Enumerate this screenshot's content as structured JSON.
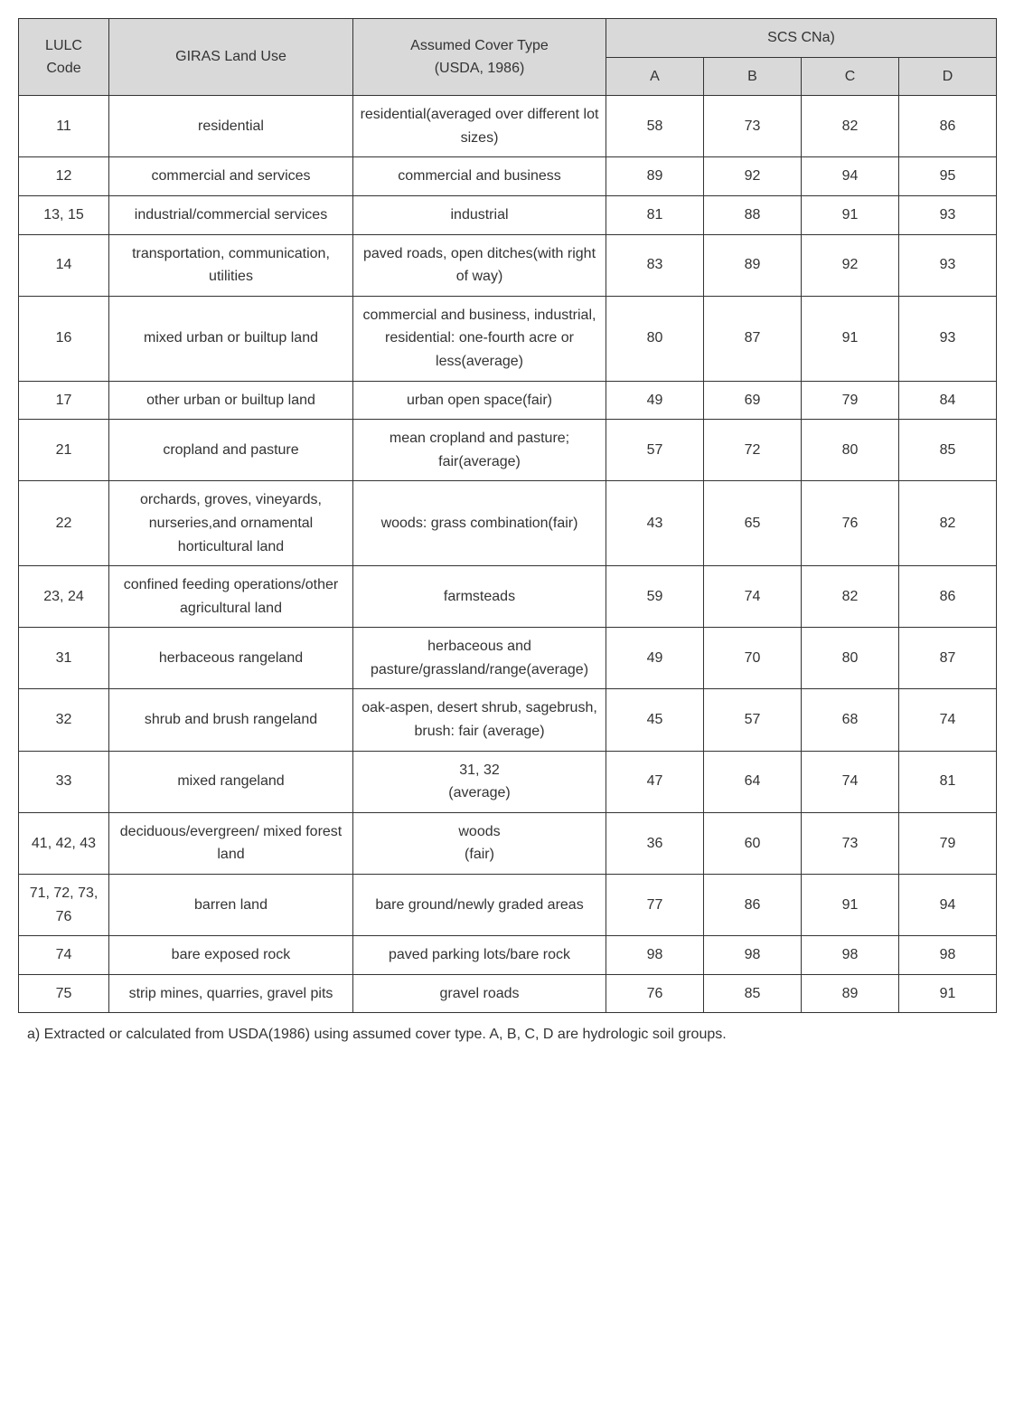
{
  "table": {
    "header_color": "#d9d9d9",
    "border_color": "#333333",
    "text_color": "#333333",
    "font_size": 16,
    "columns": {
      "lulc": "LULC",
      "code": "Code",
      "giras": "GIRAS Land Use",
      "assumed_line1": "Assumed Cover Type",
      "assumed_line2": "(USDA, 1986)",
      "scs": "SCS CNa)",
      "a": "A",
      "b": "B",
      "c": "C",
      "d": "D"
    },
    "rows": [
      {
        "code": "11",
        "giras": "residential",
        "assumed": "residential(averaged over different lot sizes)",
        "a": "58",
        "b": "73",
        "c": "82",
        "d": "86"
      },
      {
        "code": "12",
        "giras": "commercial and services",
        "assumed": "commercial and business",
        "a": "89",
        "b": "92",
        "c": "94",
        "d": "95"
      },
      {
        "code": "13, 15",
        "giras": "industrial/commercial services",
        "assumed": "industrial",
        "a": "81",
        "b": "88",
        "c": "91",
        "d": "93"
      },
      {
        "code": "14",
        "giras": "transportation, communication, utilities",
        "assumed": "paved roads, open ditches(with right of way)",
        "a": "83",
        "b": "89",
        "c": "92",
        "d": "93"
      },
      {
        "code": "16",
        "giras": "mixed urban or builtup land",
        "assumed": "commercial and business, industrial, residential: one-fourth acre or less(average)",
        "a": "80",
        "b": "87",
        "c": "91",
        "d": "93"
      },
      {
        "code": "17",
        "giras": "other urban or builtup land",
        "assumed": "urban open space(fair)",
        "a": "49",
        "b": "69",
        "c": "79",
        "d": "84"
      },
      {
        "code": "21",
        "giras": "cropland and pasture",
        "assumed": "mean cropland and pasture; fair(average)",
        "a": "57",
        "b": "72",
        "c": "80",
        "d": "85"
      },
      {
        "code": "22",
        "giras": "orchards, groves, vineyards, nurseries,and ornamental horticultural land",
        "assumed": "woods: grass combination(fair)",
        "a": "43",
        "b": "65",
        "c": "76",
        "d": "82"
      },
      {
        "code": "23, 24",
        "giras": "confined feeding operations/other agricultural land",
        "assumed": "farmsteads",
        "a": "59",
        "b": "74",
        "c": "82",
        "d": "86"
      },
      {
        "code": "31",
        "giras": "herbaceous rangeland",
        "assumed": "herbaceous and pasture/grassland/range(average)",
        "a": "49",
        "b": "70",
        "c": "80",
        "d": "87"
      },
      {
        "code": "32",
        "giras": "shrub and brush rangeland",
        "assumed": "oak-aspen, desert shrub, sagebrush, brush: fair (average)",
        "a": "45",
        "b": "57",
        "c": "68",
        "d": "74"
      },
      {
        "code": "33",
        "giras": "mixed rangeland",
        "assumed": "31, 32\n(average)",
        "a": "47",
        "b": "64",
        "c": "74",
        "d": "81"
      },
      {
        "code": "41, 42, 43",
        "giras": "deciduous/evergreen/ mixed forest land",
        "assumed": "woods\n(fair)",
        "a": "36",
        "b": "60",
        "c": "73",
        "d": "79"
      },
      {
        "code": "71, 72, 73, 76",
        "giras": "barren land",
        "assumed": "bare ground/newly graded areas",
        "a": "77",
        "b": "86",
        "c": "91",
        "d": "94"
      },
      {
        "code": "74",
        "giras": "bare exposed rock",
        "assumed": "paved parking lots/bare rock",
        "a": "98",
        "b": "98",
        "c": "98",
        "d": "98"
      },
      {
        "code": "75",
        "giras": "strip mines, quarries, gravel pits",
        "assumed": "gravel roads",
        "a": "76",
        "b": "85",
        "c": "89",
        "d": "91"
      }
    ]
  },
  "footnote": "a) Extracted or calculated from USDA(1986) using assumed cover type. A, B, C, D are hydrologic soil groups."
}
